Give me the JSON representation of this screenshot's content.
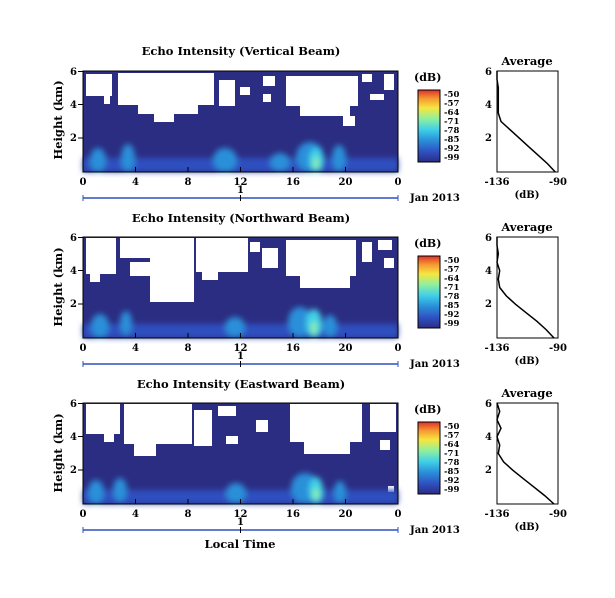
{
  "chart_data": [
    {
      "type": "heatmap",
      "title": "Echo Intensity (Vertical Beam)",
      "ylabel": "Height (km)",
      "x_ticks": [
        "0",
        "4",
        "8",
        "12",
        "16",
        "20",
        "0"
      ],
      "y_ticks": [
        "6",
        "4",
        "2"
      ],
      "date_tick": "1",
      "date_label": "Jan 2013",
      "colorbar": {
        "unit": "(dB)",
        "ticks": [
          "-50",
          "-57",
          "-64",
          "-71",
          "-78",
          "-85",
          "-92",
          "-99"
        ]
      },
      "average": {
        "title": "Average",
        "xlabel": "(dB)",
        "x_ticks": [
          "-136",
          "-90"
        ],
        "y_ticks": [
          "6",
          "4",
          "2"
        ],
        "xlim": [
          -136,
          -90
        ],
        "ylim": [
          0,
          6
        ],
        "height_km": [
          0.0,
          0.5,
          1.0,
          1.5,
          2.0,
          2.5,
          3.0,
          3.5,
          4.0,
          4.5,
          5.0,
          5.5,
          6.0
        ],
        "db": [
          -92,
          -98,
          -105,
          -112,
          -119,
          -126,
          -133,
          -135,
          -135,
          -135,
          -135,
          -136,
          -136
        ]
      }
    },
    {
      "type": "heatmap",
      "title": "Echo Intensity (Northward Beam)",
      "ylabel": "Height (km)",
      "x_ticks": [
        "0",
        "4",
        "8",
        "12",
        "16",
        "20",
        "0"
      ],
      "y_ticks": [
        "6",
        "4",
        "2"
      ],
      "date_tick": "1",
      "date_label": "Jan 2013",
      "colorbar": {
        "unit": "(dB)",
        "ticks": [
          "-50",
          "-57",
          "-64",
          "-71",
          "-78",
          "-85",
          "-92",
          "-99"
        ]
      },
      "average": {
        "title": "Average",
        "xlabel": "(dB)",
        "x_ticks": [
          "-136",
          "-90"
        ],
        "y_ticks": [
          "6",
          "4",
          "2"
        ],
        "xlim": [
          -136,
          -90
        ],
        "ylim": [
          0,
          6
        ],
        "height_km": [
          0.0,
          0.5,
          1.0,
          1.5,
          2.0,
          2.5,
          3.0,
          3.5,
          4.0,
          4.5,
          5.0,
          5.5,
          6.0
        ],
        "db": [
          -93,
          -99,
          -106,
          -114,
          -122,
          -129,
          -134,
          -135,
          -134,
          -136,
          -135,
          -136,
          -136
        ]
      }
    },
    {
      "type": "heatmap",
      "title": "Echo Intensity (Eastward Beam)",
      "ylabel": "Height (km)",
      "x_ticks": [
        "0",
        "4",
        "8",
        "12",
        "16",
        "20",
        "0"
      ],
      "y_ticks": [
        "6",
        "4",
        "2"
      ],
      "date_tick": "1",
      "date_label": "Jan 2013",
      "xlabel": "Local Time",
      "colorbar": {
        "unit": "(dB)",
        "ticks": [
          "-50",
          "-57",
          "-64",
          "-71",
          "-78",
          "-85",
          "-92",
          "-99"
        ]
      },
      "average": {
        "title": "Average",
        "xlabel": "(dB)",
        "x_ticks": [
          "-136",
          "-90"
        ],
        "y_ticks": [
          "6",
          "4",
          "2"
        ],
        "xlim": [
          -136,
          -90
        ],
        "ylim": [
          0,
          6
        ],
        "height_km": [
          0.0,
          0.5,
          1.0,
          1.5,
          2.0,
          2.5,
          3.0,
          3.5,
          4.0,
          4.5,
          5.0,
          5.5,
          6.0
        ],
        "db": [
          -93,
          -100,
          -108,
          -116,
          -124,
          -131,
          -135,
          -134,
          -136,
          -133,
          -136,
          -134,
          -136
        ]
      }
    }
  ],
  "colormap": [
    "#2b2d82",
    "#2f4fc0",
    "#2a8fd9",
    "#3fd0e8",
    "#8ef0a0",
    "#f6e640",
    "#f59a32",
    "#e0302a"
  ]
}
